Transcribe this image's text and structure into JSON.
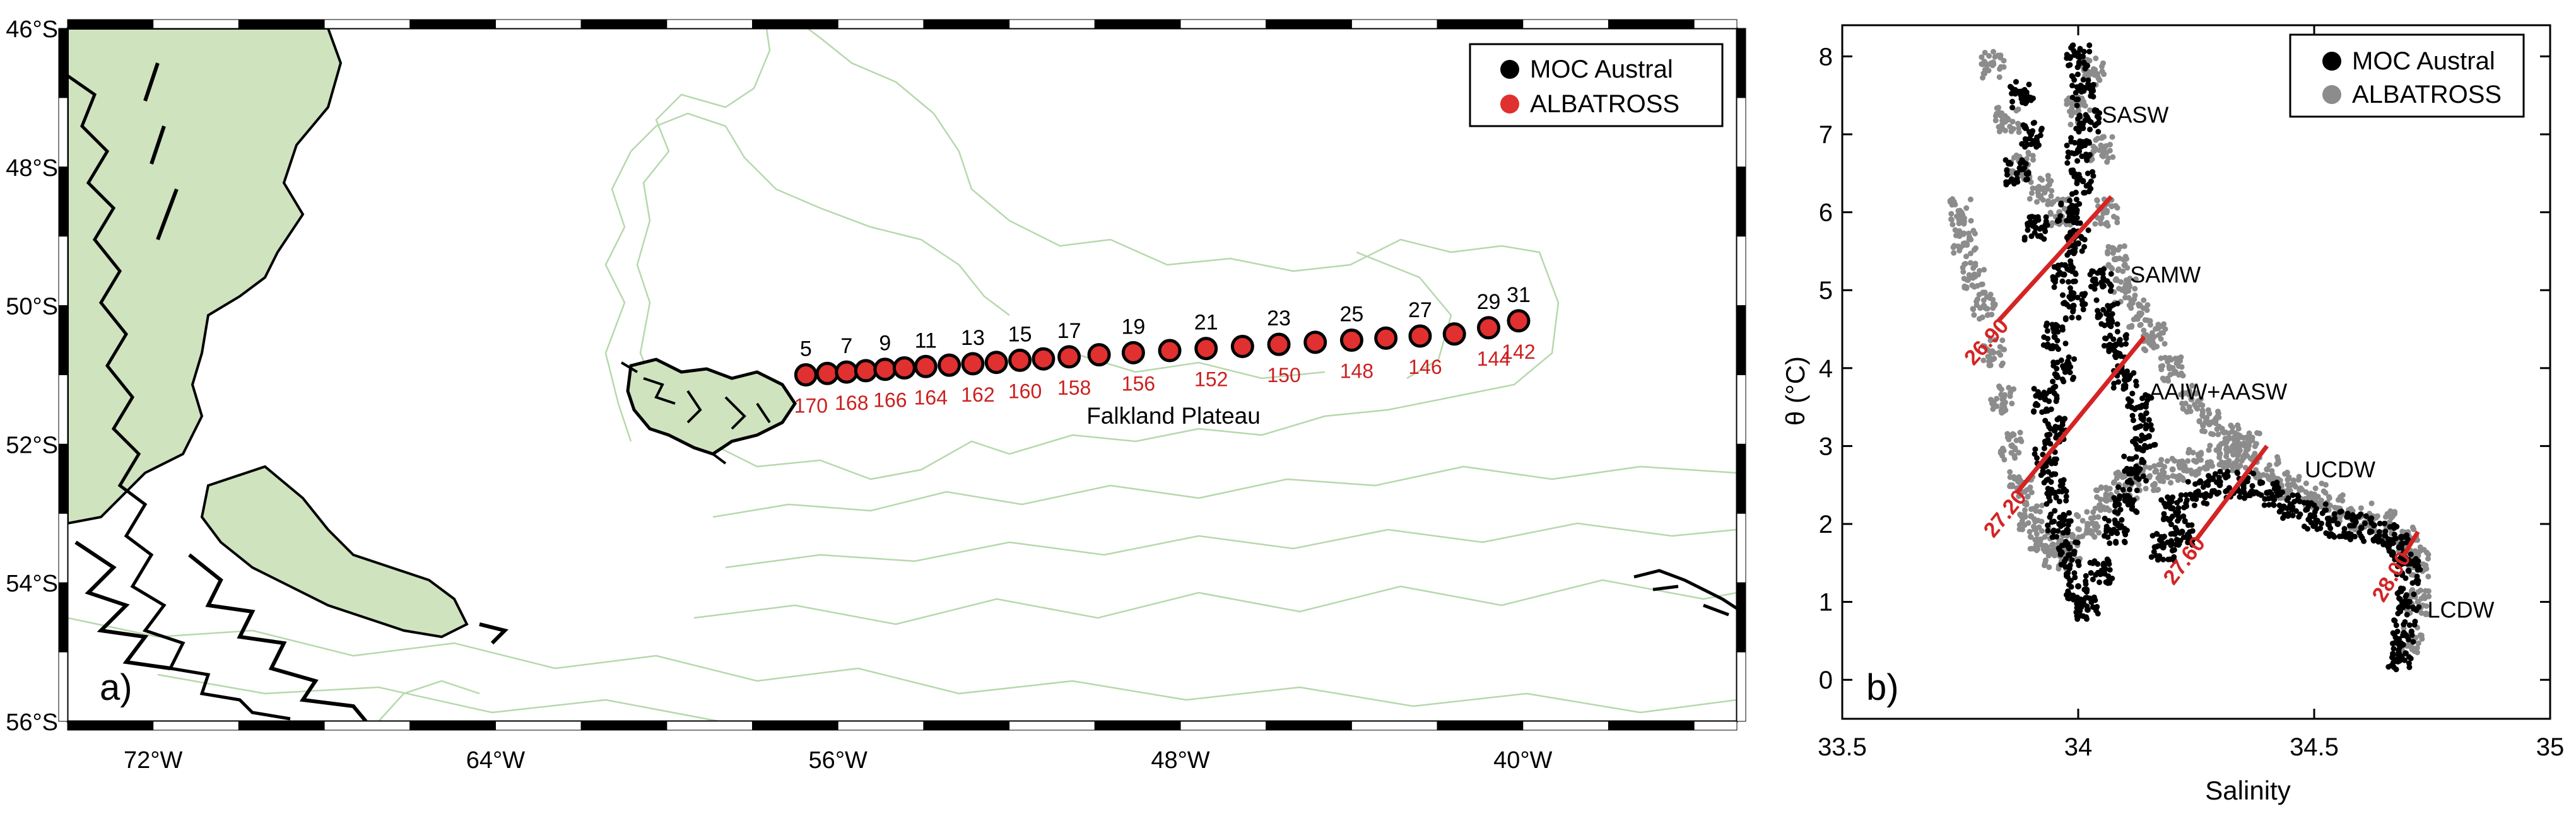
{
  "chart_data": [
    {
      "type": "scatter",
      "panel_label": "a)",
      "projection": "map",
      "xlim": [
        -74,
        -35
      ],
      "ylim": [
        -56,
        -46
      ],
      "lon_ticks": [
        -72,
        -64,
        -56,
        -48,
        -40
      ],
      "lon_tick_labels": [
        "72°W",
        "64°W",
        "56°W",
        "48°W",
        "40°W"
      ],
      "lat_ticks": [
        -46,
        -48,
        -50,
        -52,
        -54,
        -56
      ],
      "lat_tick_labels": [
        "46°S",
        "48°S",
        "50°S",
        "52°S",
        "54°S",
        "56°S"
      ],
      "region_label": "Falkland Plateau",
      "land_color": "#cfe3bf",
      "bathymetry_color": "#b6d8ac",
      "legend": {
        "position": "top-right",
        "entries": [
          {
            "name": "MOC Austral",
            "color": "#000000"
          },
          {
            "name": "ALBATROSS",
            "color": "#e03030"
          }
        ]
      },
      "series": [
        {
          "name": "MOC Austral",
          "lon": [
            -56.75,
            -56.25,
            -55.8,
            -55.35,
            -54.9,
            -54.45,
            -53.95,
            -53.4,
            -52.85,
            -52.3,
            -51.75,
            -51.2,
            -50.6,
            -49.9,
            -49.1,
            -48.25,
            -47.4,
            -46.55,
            -45.7,
            -44.85,
            -44.0,
            -43.2,
            -42.4,
            -41.6,
            -40.8,
            -40.1
          ],
          "lat": [
            -51.0,
            -50.98,
            -50.96,
            -50.94,
            -50.92,
            -50.9,
            -50.88,
            -50.86,
            -50.84,
            -50.82,
            -50.79,
            -50.77,
            -50.74,
            -50.71,
            -50.68,
            -50.65,
            -50.62,
            -50.59,
            -50.56,
            -50.53,
            -50.5,
            -50.47,
            -50.44,
            -50.41,
            -50.32,
            -50.22
          ],
          "station_labels": [
            "5",
            "7",
            "9",
            "11",
            "13",
            "15",
            "17",
            "19",
            "21",
            "23",
            "25",
            "27",
            "29",
            "31"
          ]
        },
        {
          "name": "ALBATROSS",
          "station_labels": [
            "170",
            "168",
            "166",
            "164",
            "162",
            "160",
            "158",
            "156",
            "152",
            "150",
            "148",
            "146",
            "144",
            "142"
          ]
        }
      ]
    },
    {
      "type": "scatter",
      "panel_label": "b)",
      "xlabel": "Salinity",
      "ylabel": "θ (°C)",
      "xlim": [
        33.5,
        35
      ],
      "ylim": [
        -0.5,
        8.4
      ],
      "xticks": [
        33.5,
        34,
        34.5,
        35
      ],
      "xtick_labels": [
        "33.5",
        "34",
        "34.5",
        "35"
      ],
      "yticks": [
        0,
        1,
        2,
        3,
        4,
        5,
        6,
        7,
        8
      ],
      "ytick_labels": [
        "0",
        "1",
        "2",
        "3",
        "4",
        "5",
        "6",
        "7",
        "8"
      ],
      "legend": {
        "position": "top-right",
        "entries": [
          {
            "name": "MOC Austral",
            "color": "#000000"
          },
          {
            "name": "ALBATROSS",
            "color": "#8c8c8c"
          }
        ]
      },
      "water_masses": [
        {
          "label": "SASW",
          "s": 34.05,
          "t": 7.15
        },
        {
          "label": "SAMW",
          "s": 34.11,
          "t": 5.1
        },
        {
          "label": "AAIW+AASW",
          "s": 34.15,
          "t": 3.6
        },
        {
          "label": "UCDW",
          "s": 34.48,
          "t": 2.6
        },
        {
          "label": "LCDW",
          "s": 34.74,
          "t": 0.8
        }
      ],
      "isopycnals": [
        {
          "label": "26.90",
          "s": [
            33.83,
            34.07
          ],
          "t": [
            4.6,
            6.2
          ]
        },
        {
          "label": "27.20",
          "s": [
            33.87,
            34.14
          ],
          "t": [
            2.4,
            4.4
          ]
        },
        {
          "label": "27.60",
          "s": [
            34.25,
            34.4
          ],
          "t": [
            1.8,
            3.0
          ]
        },
        {
          "label": "28.00",
          "s": [
            34.69,
            34.72
          ],
          "t": [
            1.6,
            1.9
          ]
        }
      ],
      "series": [
        {
          "name": "ALBATROSS",
          "color": "#8c8c8c",
          "points": [
            [
              33.75,
              6.0
            ],
            [
              33.76,
              5.6
            ],
            [
              33.78,
              5.2
            ],
            [
              33.8,
              4.8
            ],
            [
              33.82,
              4.2
            ],
            [
              33.84,
              3.6
            ],
            [
              33.86,
              3.0
            ],
            [
              33.88,
              2.5
            ],
            [
              33.9,
              2.1
            ],
            [
              33.92,
              1.8
            ],
            [
              33.95,
              1.6
            ],
            [
              33.98,
              1.7
            ],
            [
              34.02,
              2.0
            ],
            [
              34.06,
              2.3
            ],
            [
              34.1,
              2.5
            ],
            [
              34.15,
              2.6
            ],
            [
              34.2,
              2.7
            ],
            [
              34.25,
              2.8
            ],
            [
              34.3,
              2.9
            ],
            [
              34.35,
              2.85
            ],
            [
              34.4,
              2.7
            ],
            [
              34.45,
              2.5
            ],
            [
              34.5,
              2.35
            ],
            [
              34.55,
              2.2
            ],
            [
              34.6,
              2.1
            ],
            [
              34.65,
              2.0
            ],
            [
              34.7,
              1.8
            ],
            [
              34.72,
              1.5
            ],
            [
              34.72,
              1.0
            ],
            [
              34.71,
              0.5
            ],
            [
              33.82,
              7.9
            ],
            [
              33.85,
              7.2
            ],
            [
              33.88,
              6.6
            ],
            [
              33.92,
              6.3
            ],
            [
              33.96,
              6.0
            ],
            [
              34.0,
              7.3
            ],
            [
              34.03,
              7.8
            ],
            [
              34.05,
              6.8
            ],
            [
              34.06,
              6.0
            ],
            [
              34.08,
              5.4
            ],
            [
              34.1,
              5.0
            ],
            [
              34.13,
              4.7
            ],
            [
              34.16,
              4.4
            ],
            [
              34.2,
              4.0
            ],
            [
              34.24,
              3.6
            ],
            [
              34.28,
              3.3
            ],
            [
              34.32,
              3.1
            ],
            [
              34.36,
              3.0
            ]
          ]
        },
        {
          "name": "MOC Austral",
          "color": "#000000",
          "points": [
            [
              34.0,
              8.0
            ],
            [
              34.01,
              7.6
            ],
            [
              34.02,
              7.2
            ],
            [
              34.0,
              6.8
            ],
            [
              34.01,
              6.4
            ],
            [
              33.98,
              6.0
            ],
            [
              34.0,
              5.6
            ],
            [
              33.97,
              5.2
            ],
            [
              33.99,
              4.8
            ],
            [
              33.95,
              4.4
            ],
            [
              33.97,
              4.0
            ],
            [
              33.93,
              3.6
            ],
            [
              33.95,
              3.2
            ],
            [
              33.93,
              2.8
            ],
            [
              33.95,
              2.4
            ],
            [
              33.96,
              2.0
            ],
            [
              33.98,
              1.6
            ],
            [
              34.0,
              1.2
            ],
            [
              34.02,
              0.9
            ],
            [
              34.05,
              1.4
            ],
            [
              34.08,
              1.9
            ],
            [
              34.1,
              2.3
            ],
            [
              34.12,
              2.7
            ],
            [
              34.14,
              3.1
            ],
            [
              34.13,
              3.5
            ],
            [
              34.1,
              3.9
            ],
            [
              34.08,
              4.3
            ],
            [
              34.06,
              4.7
            ],
            [
              34.05,
              5.1
            ],
            [
              34.2,
              2.2
            ],
            [
              34.25,
              2.4
            ],
            [
              34.3,
              2.5
            ],
            [
              34.35,
              2.5
            ],
            [
              34.4,
              2.4
            ],
            [
              34.45,
              2.25
            ],
            [
              34.5,
              2.1
            ],
            [
              34.55,
              2.0
            ],
            [
              34.6,
              1.95
            ],
            [
              34.65,
              1.85
            ],
            [
              34.68,
              1.7
            ],
            [
              34.7,
              1.4
            ],
            [
              34.7,
              1.0
            ],
            [
              34.69,
              0.6
            ],
            [
              34.68,
              0.3
            ],
            [
              33.88,
              7.5
            ],
            [
              33.9,
              7.0
            ],
            [
              33.87,
              6.5
            ],
            [
              33.91,
              5.8
            ],
            [
              34.18,
              1.7
            ],
            [
              34.22,
              1.9
            ]
          ]
        }
      ]
    }
  ]
}
